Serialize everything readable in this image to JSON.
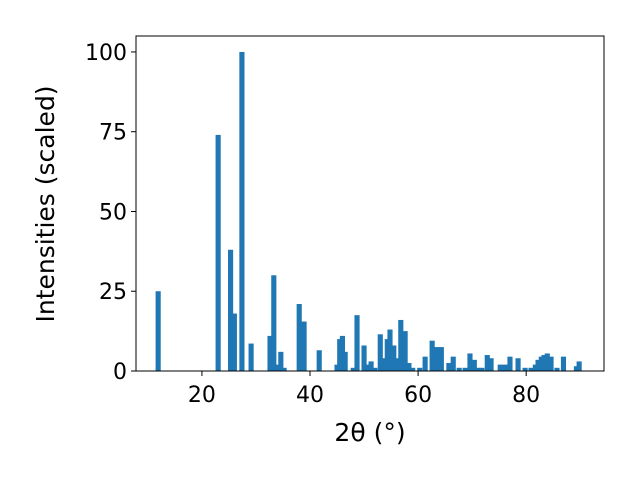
{
  "chart_data": {
    "type": "bar",
    "xlabel": "2θ (°)",
    "ylabel": "Intensities (scaled)",
    "color": "#1f77b4",
    "x": [
      11.9,
      23,
      25.3,
      26,
      27.4,
      29.1,
      32.6,
      33.3,
      34,
      34.6,
      35.2,
      38,
      38.9,
      41.7,
      45,
      45.5,
      46,
      46.5,
      48,
      48.7,
      50,
      50.7,
      51.3,
      52,
      53,
      53.5,
      54.3,
      54.8,
      55.5,
      56.3,
      56.8,
      57.6,
      58.3,
      59,
      60.3,
      61.3,
      62.6,
      63.5,
      64.3,
      65.7,
      66.5,
      67.6,
      68.7,
      69.6,
      70.4,
      71.1,
      71.8,
      72.8,
      73.5,
      75.2,
      76.1,
      77,
      78.5,
      79.8,
      80.9,
      81.7,
      82.2,
      82.8,
      83.3,
      83.9,
      84.6,
      85.7,
      86.9,
      89.3,
      89.8
    ],
    "values": [
      25,
      74,
      38,
      18,
      100,
      8.6,
      11,
      30,
      2,
      6,
      1,
      21,
      15.5,
      6.5,
      2,
      10,
      11,
      6,
      1,
      17.5,
      8,
      2,
      3,
      1,
      11.5,
      4,
      10,
      13,
      8,
      4,
      16,
      12.5,
      2.5,
      1,
      1,
      4.5,
      9.5,
      7.5,
      7.5,
      2.5,
      4.5,
      1,
      1,
      5.5,
      3.5,
      1,
      1,
      5,
      4,
      2,
      2,
      4.5,
      4,
      1,
      1,
      2,
      3.5,
      4.5,
      5,
      5.5,
      4.5,
      1,
      4.5,
      1.5,
      3
    ],
    "xlim": [
      7.8,
      94.4
    ],
    "ylim": [
      0,
      105
    ],
    "xticks": [
      20,
      40,
      60,
      80
    ],
    "yticks": [
      0,
      25,
      50,
      75,
      100
    ]
  }
}
